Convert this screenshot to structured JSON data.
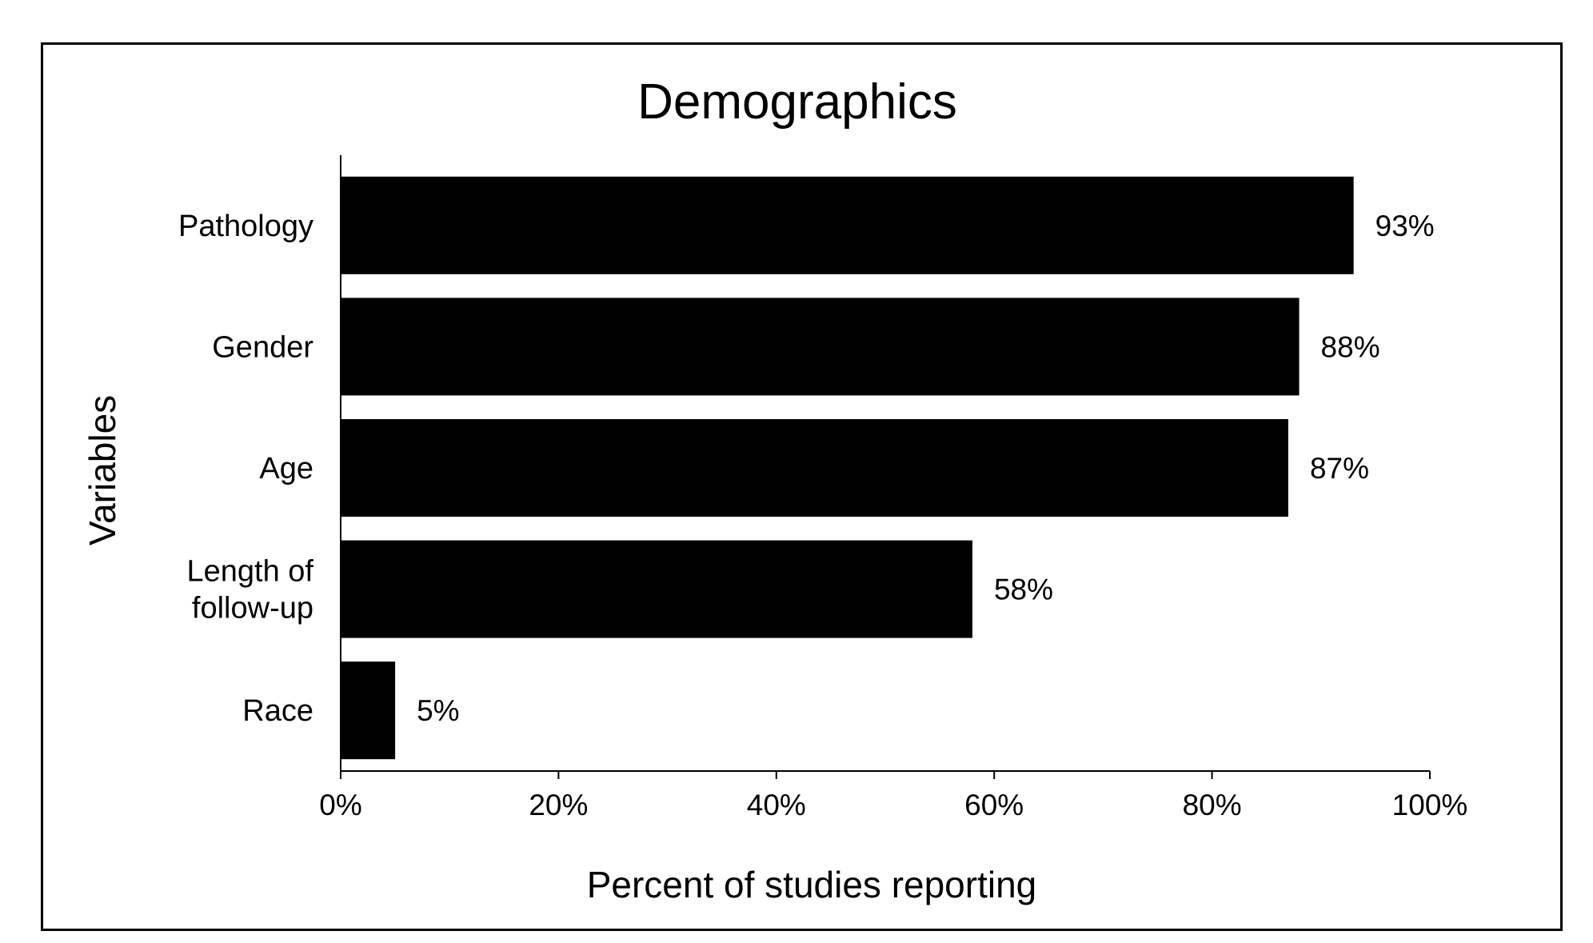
{
  "chart_data": {
    "type": "bar",
    "orientation": "horizontal",
    "title": "Demographics",
    "xlabel": "Percent of studies reporting",
    "ylabel": "Variables",
    "categories": [
      [
        "Pathology"
      ],
      [
        "Gender"
      ],
      [
        "Age"
      ],
      [
        "Length of",
        "follow-up"
      ],
      [
        "Race"
      ]
    ],
    "values": [
      93,
      88,
      87,
      58,
      5
    ],
    "data_labels": [
      "93%",
      "88%",
      "87%",
      "58%",
      "5%"
    ],
    "xlim": [
      0,
      100
    ],
    "xticks": [
      0,
      20,
      40,
      60,
      80,
      100
    ],
    "xtick_labels": [
      "0%",
      "20%",
      "40%",
      "60%",
      "80%",
      "100%"
    ],
    "grid": false,
    "legend": "none",
    "bar_color": "#000000"
  }
}
